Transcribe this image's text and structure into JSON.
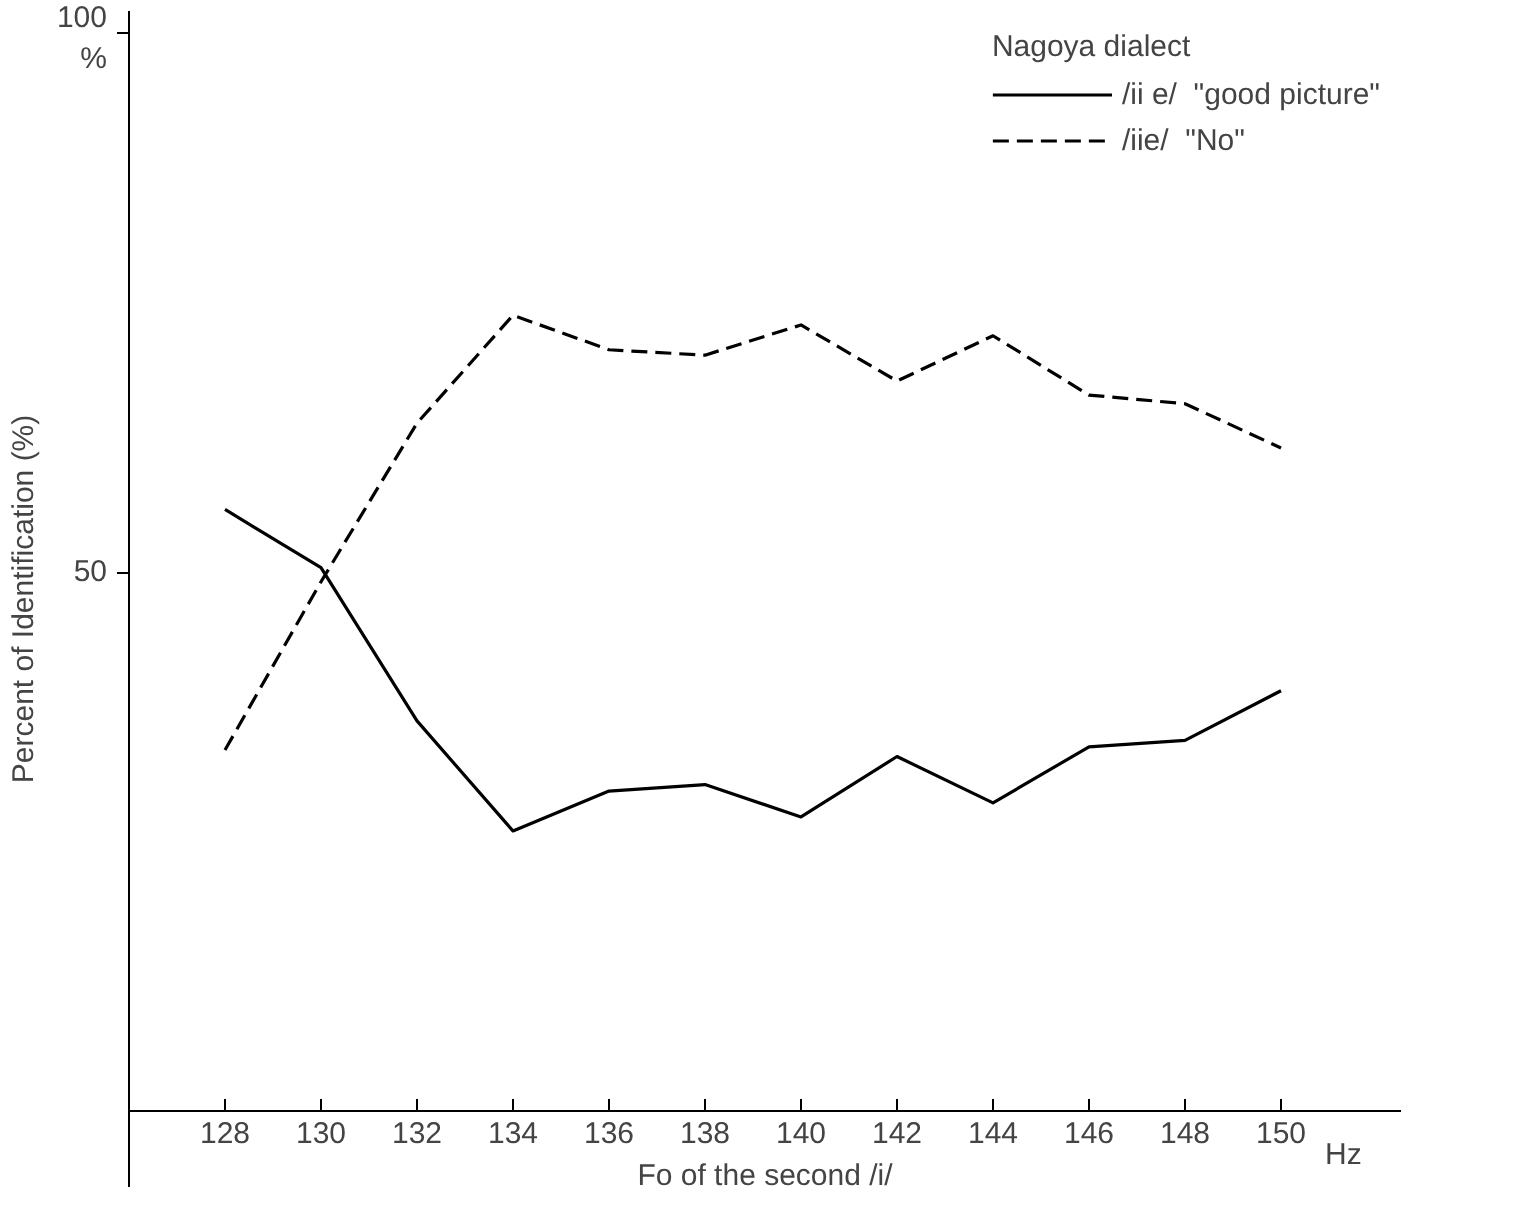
{
  "chart_data": {
    "type": "line",
    "xlabel": "Fo of the second /i/",
    "ylabel": "Percent of Identification (%)",
    "legend_title": "Nagoya dialect",
    "legend": "top right",
    "grid": false,
    "marker": "none",
    "x": [
      128,
      130,
      132,
      134,
      136,
      138,
      140,
      142,
      144,
      146,
      148,
      150
    ],
    "xlim": [
      126,
      152.5
    ],
    "xticks": [
      128,
      130,
      132,
      134,
      136,
      138,
      140,
      142,
      144,
      146,
      148,
      150
    ],
    "ylim": [
      -7,
      102
    ],
    "yticks": [
      50,
      {
        "value": 100,
        "label": "100\n%"
      }
    ],
    "annotations": [
      "Hz"
    ],
    "series": [
      {
        "name": "/ii e/  \"good picture\"",
        "color": "#000000",
        "line_style": "solid",
        "values": [
          55.8,
          50.4,
          36.2,
          26.0,
          29.7,
          30.3,
          27.3,
          32.9,
          28.6,
          33.8,
          34.4,
          39.0
        ]
      },
      {
        "name": "/iie/  \"No\"",
        "color": "#000000",
        "line_style": "dashed",
        "values": [
          33.5,
          49.1,
          63.8,
          73.8,
          70.6,
          70.1,
          72.9,
          67.7,
          71.9,
          66.4,
          65.6,
          61.5
        ]
      }
    ]
  }
}
